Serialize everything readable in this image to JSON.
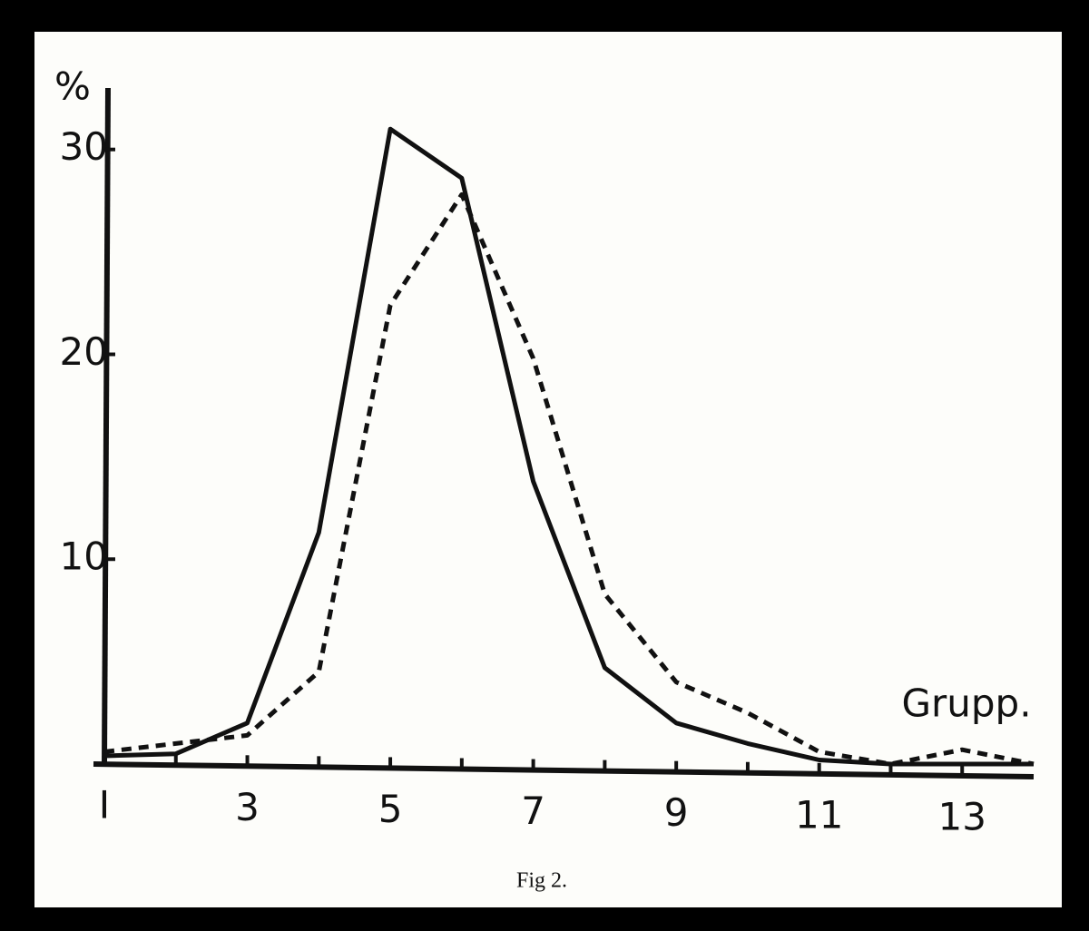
{
  "chart_data": {
    "type": "line",
    "y_label": "%",
    "annotation": "Grupp.",
    "caption": "Fig 2.",
    "x": [
      1,
      2,
      3,
      4,
      5,
      6,
      7,
      8,
      9,
      10,
      11,
      12,
      13,
      14
    ],
    "series": [
      {
        "color": "#111111",
        "style": "solid",
        "values": [
          0.4,
          0.5,
          2.0,
          11.3,
          31.0,
          28.6,
          13.8,
          4.7,
          2.0,
          1.0,
          0.2,
          0,
          0,
          0
        ]
      },
      {
        "color": "#111111",
        "style": "dashed",
        "values": [
          0.6,
          1.0,
          1.4,
          4.5,
          22.4,
          27.8,
          19.8,
          8.3,
          4.0,
          2.5,
          0.6,
          0,
          0.7,
          0
        ]
      }
    ],
    "xlim": [
      1,
      14
    ],
    "xticks": [
      {
        "value": 1,
        "label": "I"
      },
      3,
      5,
      7,
      9,
      11,
      13
    ],
    "xminorticks": [
      2,
      4,
      6,
      8,
      10,
      12
    ],
    "ylim": [
      0,
      33
    ],
    "yticks": [
      10,
      20,
      30
    ],
    "grid": false
  }
}
